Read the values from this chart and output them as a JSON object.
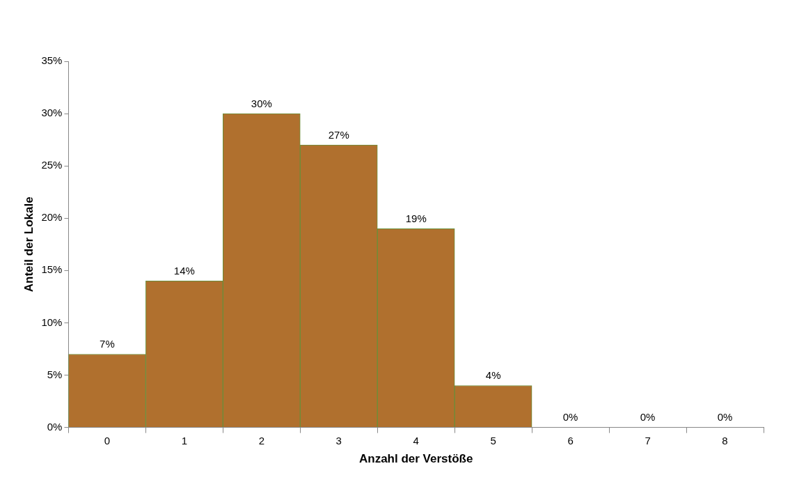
{
  "chart_data": {
    "type": "bar",
    "xlabel": "Anzahl der Verstöße",
    "ylabel": "Anteil der Lokale",
    "categories": [
      "0",
      "1",
      "2",
      "3",
      "4",
      "5",
      "6",
      "7",
      "8"
    ],
    "values": [
      7,
      14,
      30,
      27,
      19,
      4,
      0,
      0,
      0
    ],
    "value_labels": [
      "7%",
      "14%",
      "30%",
      "27%",
      "19%",
      "4%",
      "0%",
      "0%",
      "0%"
    ],
    "color": "#b0702e",
    "ylim": [
      0,
      35
    ],
    "yticks": [
      {
        "value": 0,
        "label": "0%"
      },
      {
        "value": 5,
        "label": "5%"
      },
      {
        "value": 10,
        "label": "10%"
      },
      {
        "value": 15,
        "label": "15%"
      },
      {
        "value": 20,
        "label": "20%"
      },
      {
        "value": 25,
        "label": "25%"
      },
      {
        "value": 30,
        "label": "30%"
      },
      {
        "value": 35,
        "label": "35%"
      }
    ],
    "grid": false,
    "legend": false
  }
}
